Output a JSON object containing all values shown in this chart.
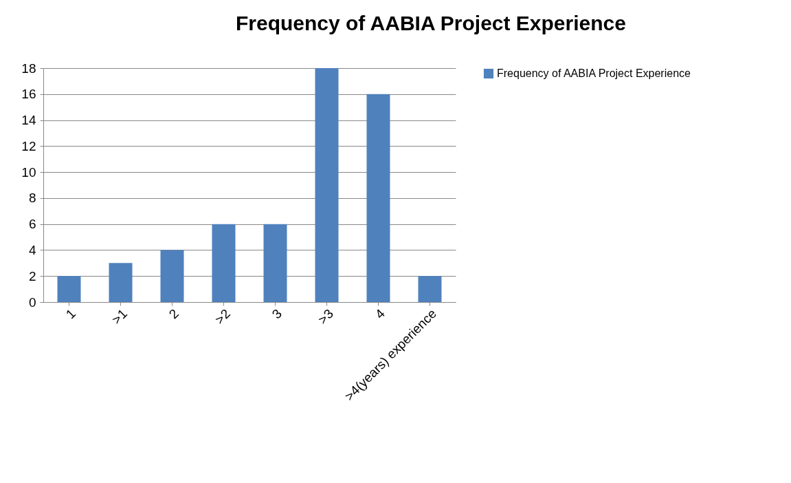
{
  "chart_data": {
    "type": "bar",
    "title": "Frequency of AABIA Project Experience",
    "categories": [
      "1",
      ">1",
      "2",
      ">2",
      "3",
      ">3",
      "4",
      ">4(years) experience"
    ],
    "series": [
      {
        "name": "Frequency of AABIA Project Experience",
        "color": "#4f81bd",
        "values": [
          2,
          3,
          4,
          6,
          6,
          18,
          16,
          2
        ]
      }
    ],
    "ylim": [
      0,
      18
    ],
    "yticks": [
      0,
      2,
      4,
      6,
      8,
      10,
      12,
      14,
      16,
      18
    ],
    "grid": "y",
    "legend": "right"
  }
}
